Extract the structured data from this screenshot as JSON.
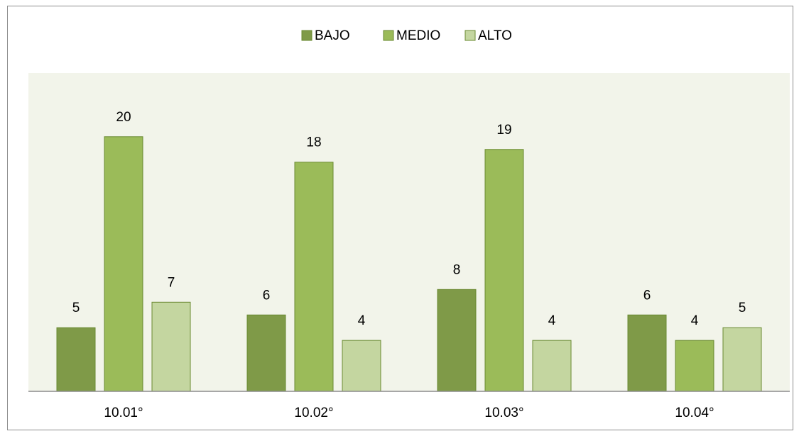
{
  "chart_data": {
    "type": "bar",
    "categories": [
      "10.01°",
      "10.02°",
      "10.03°",
      "10.04°"
    ],
    "series": [
      {
        "name": "BAJO",
        "color": "#7f9a48",
        "values": [
          5,
          6,
          8,
          6
        ]
      },
      {
        "name": "MEDIO",
        "color": "#9bbb59",
        "values": [
          20,
          18,
          19,
          4
        ]
      },
      {
        "name": "ALTO",
        "color": "#c4d6a0",
        "values": [
          7,
          4,
          4,
          5
        ]
      }
    ],
    "ylim": [
      0,
      25
    ],
    "legend": "top"
  }
}
